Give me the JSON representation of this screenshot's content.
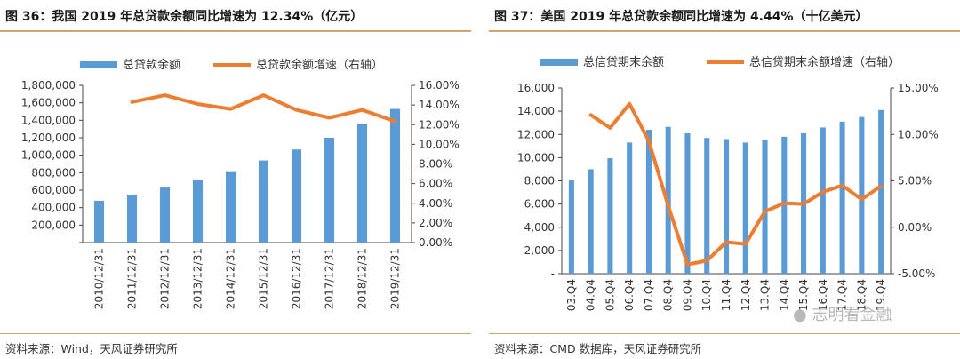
{
  "chart_data": [
    {
      "type": "bar",
      "title": "图 36：我国 2019 年总贷款余额同比增速为 12.34%（亿元）",
      "categories": [
        "2010/12/31",
        "2011/12/31",
        "2012/12/31",
        "2013/12/31",
        "2014/12/31",
        "2015/12/31",
        "2016/12/31",
        "2017/12/31",
        "2018/12/31",
        "2019/12/31"
      ],
      "series": [
        {
          "name": "总贷款余额",
          "type": "bar",
          "axis": "left",
          "color": "#5b9bd5",
          "values": [
            479000,
            548000,
            630000,
            718000,
            817000,
            940000,
            1066000,
            1201000,
            1362000,
            1530000
          ]
        },
        {
          "name": "总贷款余额增速（右轴）",
          "type": "line",
          "axis": "right",
          "color": "#ed7d31",
          "values": [
            null,
            14.3,
            15.0,
            14.1,
            13.6,
            15.0,
            13.5,
            12.7,
            13.5,
            12.34
          ]
        }
      ],
      "y_left": {
        "min": 0,
        "max": 1800000,
        "ticks": [
          "-",
          "200,000",
          "400,000",
          "600,000",
          "800,000",
          "1,000,000",
          "1,200,000",
          "1,400,000",
          "1,600,000",
          "1,800,000"
        ]
      },
      "y_right": {
        "min": 0,
        "max": 16,
        "ticks": [
          "0.00%",
          "2.00%",
          "4.00%",
          "6.00%",
          "8.00%",
          "10.00%",
          "12.00%",
          "14.00%",
          "16.00%"
        ]
      },
      "legend": "top",
      "source": "资料来源：Wind，天风证券研究所"
    },
    {
      "type": "bar",
      "title": "图 37：美国 2019 年总贷款余额同比增速为 4.44%（十亿美元）",
      "categories": [
        "03.Q4",
        "04.Q4",
        "05.Q4",
        "06.Q4",
        "07.Q4",
        "08.Q4",
        "09.Q4",
        "10.Q4",
        "11.Q4",
        "12.Q4",
        "13.Q4",
        "14.Q4",
        "15.Q4",
        "16.Q4",
        "17.Q4",
        "18.Q4",
        "19.Q4"
      ],
      "series": [
        {
          "name": "总信贷期末余额",
          "type": "bar",
          "axis": "left",
          "color": "#5b9bd5",
          "values": [
            8050,
            9000,
            9950,
            11300,
            12400,
            12650,
            12100,
            11700,
            11600,
            11300,
            11500,
            11800,
            12100,
            12600,
            13100,
            13500,
            14100
          ]
        },
        {
          "name": "总信贷期末余额增速（右轴）",
          "type": "line",
          "axis": "right",
          "color": "#ed7d31",
          "values": [
            null,
            12.1,
            10.7,
            13.3,
            9.3,
            2.3,
            -4.0,
            -3.6,
            -1.6,
            -1.8,
            1.7,
            2.6,
            2.5,
            3.8,
            4.5,
            3.0,
            4.44
          ]
        }
      ],
      "y_left": {
        "min": 0,
        "max": 16000,
        "ticks": [
          "-",
          "2,000",
          "4,000",
          "6,000",
          "8,000",
          "10,000",
          "12,000",
          "14,000",
          "16,000"
        ]
      },
      "y_right": {
        "min": -5,
        "max": 15,
        "ticks": [
          "-5.00%",
          "0.00%",
          "5.00%",
          "10.00%",
          "15.00%"
        ]
      },
      "legend": "top",
      "source": "资料来源：CMD 数据库，天风证券研究所"
    }
  ],
  "watermark": "志明看金融",
  "watermark_icon": "wechat-icon"
}
